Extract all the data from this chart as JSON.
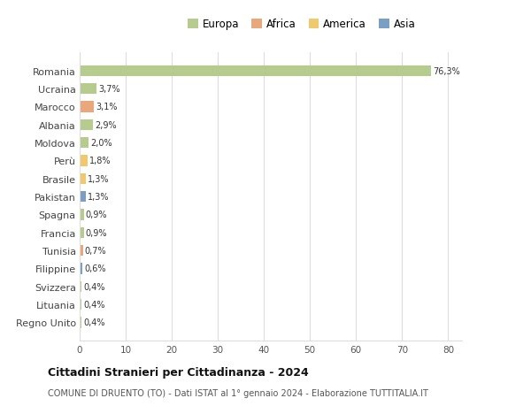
{
  "categories": [
    "Romania",
    "Ucraina",
    "Marocco",
    "Albania",
    "Moldova",
    "Perù",
    "Brasile",
    "Pakistan",
    "Spagna",
    "Francia",
    "Tunisia",
    "Filippine",
    "Svizzera",
    "Lituania",
    "Regno Unito"
  ],
  "values": [
    76.3,
    3.7,
    3.1,
    2.9,
    2.0,
    1.8,
    1.3,
    1.3,
    0.9,
    0.9,
    0.7,
    0.6,
    0.4,
    0.4,
    0.4
  ],
  "labels": [
    "76,3%",
    "3,7%",
    "3,1%",
    "2,9%",
    "2,0%",
    "1,8%",
    "1,3%",
    "1,3%",
    "0,9%",
    "0,9%",
    "0,7%",
    "0,6%",
    "0,4%",
    "0,4%",
    "0,4%"
  ],
  "colors": [
    "#b5cc8e",
    "#b5cc8e",
    "#e8a87c",
    "#b5cc8e",
    "#b5cc8e",
    "#f0c96e",
    "#f0c96e",
    "#7a9fc2",
    "#b5cc8e",
    "#b5cc8e",
    "#e8a87c",
    "#7a9fc2",
    "#b5cc8e",
    "#b5cc8e",
    "#b5cc8e"
  ],
  "legend_labels": [
    "Europa",
    "Africa",
    "America",
    "Asia"
  ],
  "legend_colors": [
    "#b5cc8e",
    "#e8a87c",
    "#f0c96e",
    "#7a9fc2"
  ],
  "title": "Cittadini Stranieri per Cittadinanza - 2024",
  "subtitle": "COMUNE DI DRUENTO (TO) - Dati ISTAT al 1° gennaio 2024 - Elaborazione TUTTITALIA.IT",
  "xlim": [
    0,
    83
  ],
  "xticks": [
    0,
    10,
    20,
    30,
    40,
    50,
    60,
    70,
    80
  ],
  "background_color": "#ffffff",
  "grid_color": "#dddddd"
}
